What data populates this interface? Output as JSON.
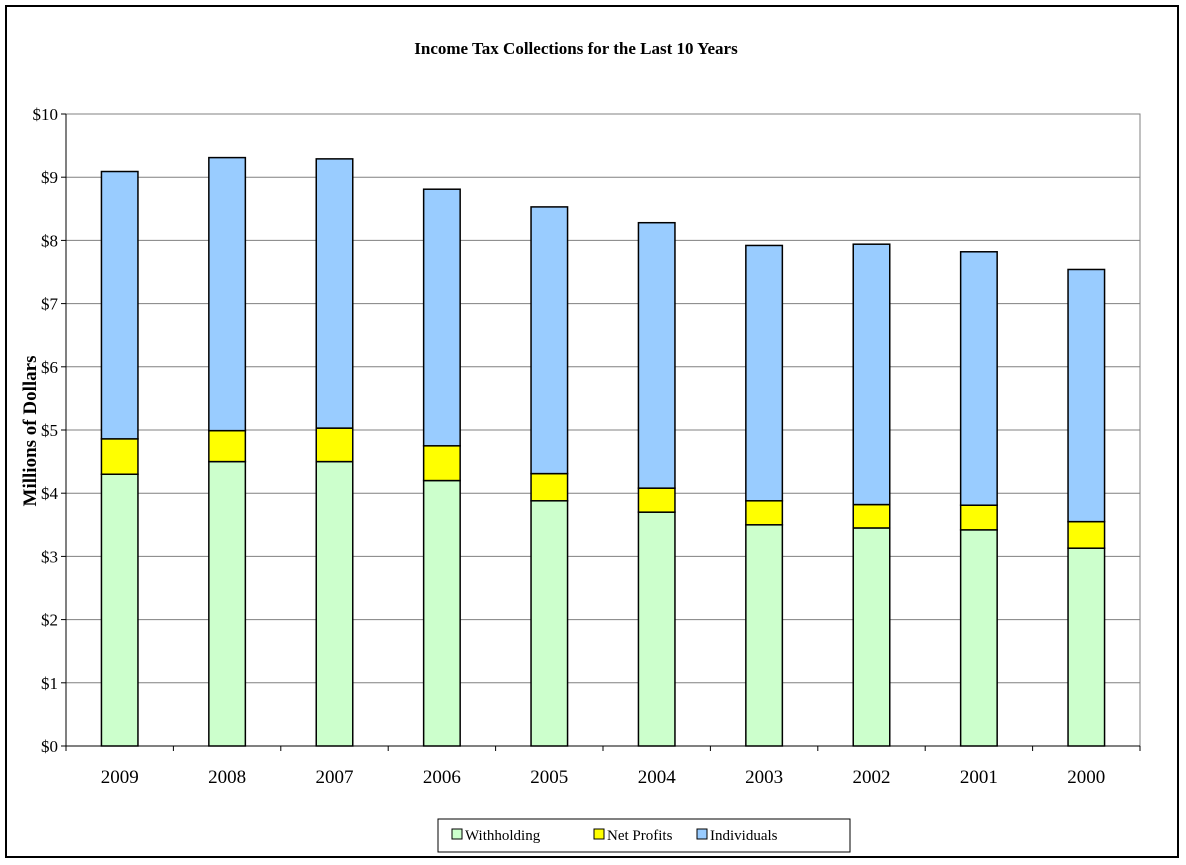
{
  "chart_data": {
    "type": "bar",
    "stacked": true,
    "title": "Income Tax Collections for the Last 10 Years",
    "ylabel": "Millions of Dollars",
    "xlabel": "",
    "categories": [
      "2009",
      "2008",
      "2007",
      "2006",
      "2005",
      "2004",
      "2003",
      "2002",
      "2001",
      "2000"
    ],
    "series": [
      {
        "name": "Withholding",
        "color": "#ccffcc",
        "values": [
          4.3,
          4.5,
          4.5,
          4.2,
          3.88,
          3.7,
          3.5,
          3.45,
          3.42,
          3.13
        ]
      },
      {
        "name": "Net Profits",
        "color": "#ffff00",
        "values": [
          0.56,
          0.49,
          0.53,
          0.55,
          0.43,
          0.38,
          0.38,
          0.37,
          0.39,
          0.42
        ]
      },
      {
        "name": "Individuals",
        "color": "#99ccff",
        "values": [
          4.23,
          4.32,
          4.26,
          4.06,
          4.22,
          4.2,
          4.04,
          4.12,
          4.01,
          3.99
        ]
      }
    ],
    "ylim": [
      0,
      10
    ],
    "yticks": [
      0,
      1,
      2,
      3,
      4,
      5,
      6,
      7,
      8,
      9,
      10
    ],
    "ytick_labels": [
      "$0",
      "$1",
      "$2",
      "$3",
      "$4",
      "$5",
      "$6",
      "$7",
      "$8",
      "$9",
      "$10"
    ],
    "grid": true,
    "legend_position": "bottom"
  }
}
